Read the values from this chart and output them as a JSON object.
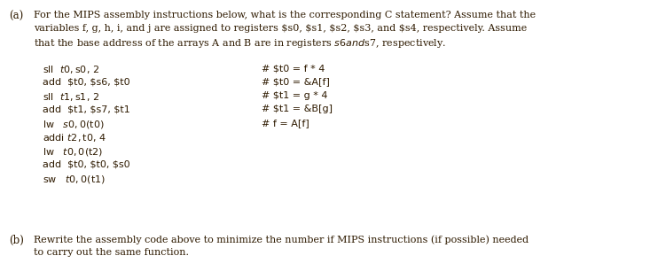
{
  "bg_color": "#ffffff",
  "text_color": "#2E1A00",
  "dark_color": "#3B1A00",
  "part_a_label": "(a)",
  "part_a_text_line1": "For the MIPS assembly instructions below, what is the corresponding C statement? Assume that the",
  "part_a_text_line2": "variables f, g, h, i, and j are assigned to registers $s0, $s1, $s2, $s3, and $s4, respectively. Assume",
  "part_a_text_line3": "that the base address of the arrays A and B are in registers $s6 and$s7, respectively.",
  "code_lines_left": [
    "sll  $t0, $s0, 2",
    "add  $t0, $s6, $t0",
    "sll  $t1, $s1, 2",
    "add  $t1, $s7, $t1",
    "lw   $s0, 0($t0)",
    "addi $t2, $t0, 4",
    "lw   $t0, 0($t2)",
    "add  $t0, $t0, $s0",
    "sw   $t0, 0($t1)"
  ],
  "code_lines_right": [
    "# $t0 = f * 4",
    "# $t0 = &A[f]",
    "# $t1 = g * 4",
    "# $t1 = &B[g]",
    "# f = A[f]",
    "",
    "",
    "",
    ""
  ],
  "part_b_label": "(b)",
  "part_b_text_line1": "Rewrite the assembly code above to minimize the number if MIPS instructions (if possible) needed",
  "part_b_text_line2": "to carry out the same function."
}
